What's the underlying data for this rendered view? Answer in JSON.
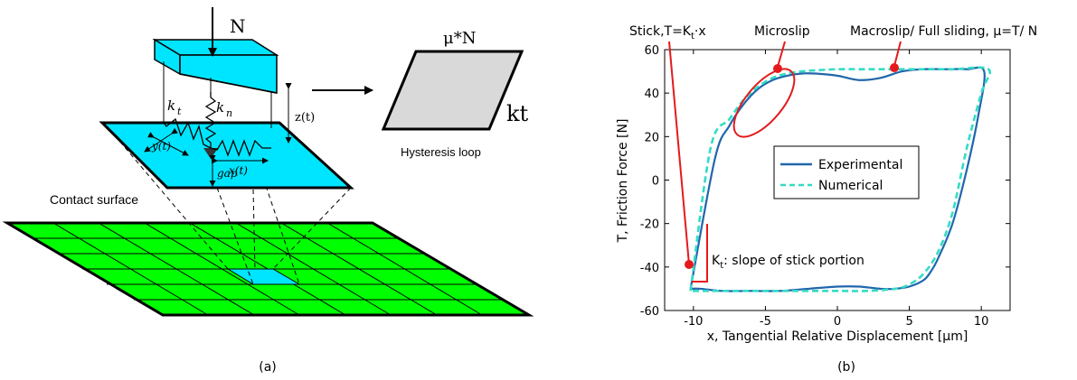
{
  "left_panel": {
    "normal_force_label": "N",
    "stiffness_tangential_label": "k",
    "stiffness_tangential_sub": "t",
    "stiffness_normal_label": "k",
    "stiffness_normal_sub": "n",
    "normal_gap_label": "z(t)",
    "gap_label": "gap",
    "x_disp_label": "x(t)",
    "y_disp_label": "y(t)",
    "loop_top_label": "μ*N",
    "loop_side_label": "kt",
    "hysteresis_label": "Hysteresis loop",
    "contact_surface_label": "Contact surface",
    "caption": "(a)",
    "colors": {
      "block": "#00e5ff",
      "mesh": "#00ff00",
      "loop": "#d9d9d9"
    }
  },
  "right_panel": {
    "caption": "(b)",
    "annotations": {
      "stick": "Stick,T=K",
      "stick_sub": "t",
      "stick_tail": "·x",
      "microslip": "Microslip",
      "macroslip": "Macroslip/ Full sliding, μ=T/ N",
      "kt_slope_main": "K",
      "kt_slope_sub": "t",
      "kt_slope_tail": ": slope of stick portion"
    }
  },
  "chart_data": {
    "type": "line",
    "xlabel": "x, Tangential Relative Displacement [μm]",
    "ylabel": "T, Friction Force [N]",
    "xlim": [
      -12,
      12
    ],
    "ylim": [
      -60,
      60
    ],
    "xticks": [
      -10,
      -5,
      0,
      5,
      10
    ],
    "yticks": [
      -60,
      -40,
      -20,
      0,
      20,
      40,
      60
    ],
    "x_tick_labels": [
      "-10",
      "-5",
      "0",
      "5",
      "10"
    ],
    "y_tick_labels": [
      "-60",
      "-40",
      "-20",
      "0",
      "20",
      "40",
      "60"
    ],
    "legend_position": "center",
    "series": [
      {
        "name": "Experimental",
        "color": "#2166ac",
        "style": "solid",
        "x": [
          -10.2,
          -8.5,
          -7.5,
          -6.5,
          -5.5,
          -4.5,
          -3.5,
          -2.5,
          -1.5,
          0,
          1.5,
          3,
          4.5,
          6,
          7.5,
          9,
          10.2,
          9.8,
          9,
          8,
          7,
          6.5,
          6,
          5,
          4,
          3,
          1.5,
          0,
          -2,
          -4,
          -6,
          -8,
          -9.5,
          -10.2
        ],
        "y": [
          -50,
          10,
          25,
          35,
          42,
          46,
          48,
          49,
          49,
          48,
          46,
          47,
          50,
          51,
          51,
          51,
          50,
          30,
          5,
          -20,
          -36,
          -42,
          -46,
          -49,
          -50,
          -50,
          -49,
          -49,
          -50,
          -51,
          -51,
          -51,
          -50,
          -50
        ]
      },
      {
        "name": "Numerical",
        "color": "#33dcc4",
        "style": "dashed",
        "x": [
          -10.2,
          -8.8,
          -7.5,
          -6.5,
          -5.5,
          -4.5,
          -3.5,
          -2.5,
          -1.5,
          0,
          2,
          4,
          6,
          8,
          10.5,
          10,
          9,
          8,
          7,
          6,
          5,
          4,
          2,
          0,
          -3,
          -6,
          -9,
          -10.2
        ],
        "y": [
          -51,
          15,
          28,
          37,
          43,
          47,
          49,
          50,
          50.5,
          51,
          51,
          51,
          51,
          51,
          51,
          40,
          15,
          -15,
          -33,
          -43,
          -48,
          -50,
          -51,
          -51,
          -51,
          -51,
          -51,
          -51
        ]
      }
    ]
  }
}
